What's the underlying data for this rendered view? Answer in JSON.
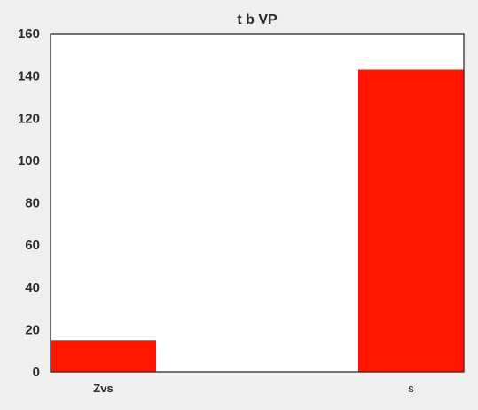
{
  "chart_data": {
    "type": "bar",
    "title": "t b VP",
    "xlabel": "",
    "ylabel": "",
    "categories": [
      "Zvs",
      "s"
    ],
    "values": [
      15,
      143
    ],
    "ylim": [
      0,
      160
    ],
    "yticks": [
      "0",
      "20",
      "40",
      "60",
      "80",
      "100",
      "120",
      "140",
      "160"
    ],
    "grid": false,
    "legend": "none",
    "bar_color": "#ff1500",
    "axis_color": "#2b2b2b",
    "plot_background": "#ffffff",
    "page_background": "#efefef"
  }
}
